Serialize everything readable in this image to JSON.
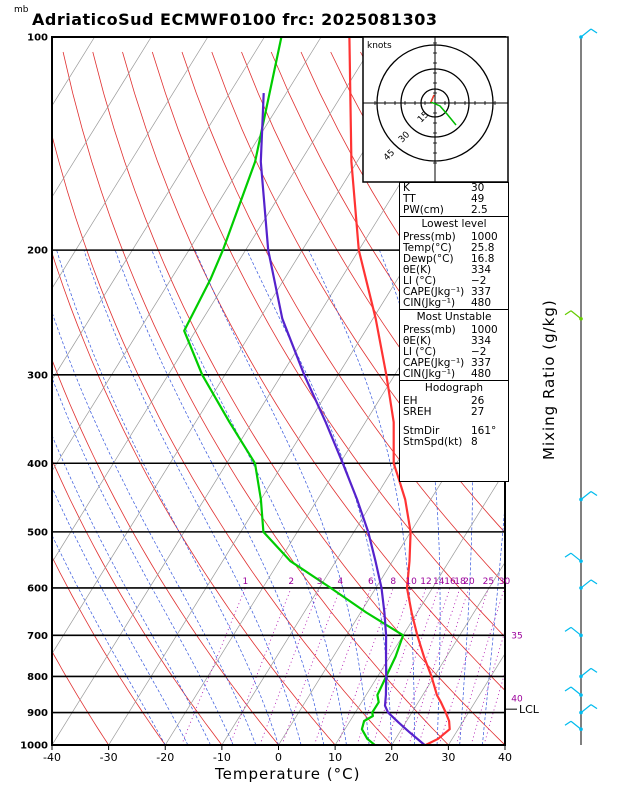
{
  "title": "AdriaticoSud ECMWF0100 frc: 2025081303",
  "pressure_unit": "mb",
  "chart_data": {
    "type": "line",
    "title": "AdriaticoSud ECMWF0100 frc: 2025081303",
    "xlabel": "Temperature (°C)",
    "ylabel": "",
    "right_label": "Mixing Ratio (g/kg)",
    "xlim": [
      -40,
      40
    ],
    "pressure_range": [
      1000,
      100
    ],
    "x_ticks": [
      "-40",
      "-30",
      "-20",
      "-10",
      "0",
      "10",
      "20",
      "30",
      "40"
    ],
    "pressure_ticks": [
      "100",
      "200",
      "300",
      "400",
      "500",
      "600",
      "700",
      "800",
      "900",
      "1000"
    ],
    "mixing_ratio_labels": [
      "1",
      "2",
      "3",
      "4",
      "6",
      "8",
      "10",
      "12",
      "14",
      "16",
      "18",
      "20",
      "25",
      "30",
      "35",
      "40"
    ],
    "lcl_label": "LCL",
    "lcl_pressure": 890,
    "series": [
      {
        "name": "temperature",
        "color": "#ff3333",
        "points": [
          [
            1000,
            26
          ],
          [
            980,
            27.5
          ],
          [
            950,
            28.5
          ],
          [
            925,
            27.5
          ],
          [
            900,
            26
          ],
          [
            870,
            24
          ],
          [
            850,
            22.5
          ],
          [
            800,
            19.5
          ],
          [
            750,
            16
          ],
          [
            700,
            12.5
          ],
          [
            650,
            9
          ],
          [
            600,
            5.5
          ],
          [
            550,
            3
          ],
          [
            500,
            0
          ],
          [
            450,
            -4.5
          ],
          [
            420,
            -8
          ],
          [
            400,
            -10.5
          ],
          [
            350,
            -15
          ],
          [
            300,
            -21.5
          ],
          [
            250,
            -29.5
          ],
          [
            200,
            -40
          ],
          [
            150,
            -51
          ],
          [
            100,
            -65
          ]
        ]
      },
      {
        "name": "dewpoint",
        "color": "#00cc00",
        "points": [
          [
            1000,
            17
          ],
          [
            980,
            15
          ],
          [
            950,
            13
          ],
          [
            925,
            12.5
          ],
          [
            910,
            13.5
          ],
          [
            900,
            13
          ],
          [
            870,
            13
          ],
          [
            850,
            12
          ],
          [
            800,
            11.5
          ],
          [
            750,
            11
          ],
          [
            700,
            10
          ],
          [
            650,
            1
          ],
          [
            600,
            -8
          ],
          [
            550,
            -18
          ],
          [
            500,
            -26
          ],
          [
            450,
            -30
          ],
          [
            400,
            -35
          ],
          [
            350,
            -44
          ],
          [
            300,
            -54
          ],
          [
            260,
            -62
          ],
          [
            220,
            -63
          ],
          [
            200,
            -64
          ],
          [
            150,
            -68
          ],
          [
            100,
            -77
          ]
        ]
      },
      {
        "name": "parcel",
        "color": "#5522cc",
        "points": [
          [
            1000,
            25.8
          ],
          [
            960,
            21.8
          ],
          [
            930,
            18.8
          ],
          [
            900,
            15.8
          ],
          [
            880,
            14.5
          ],
          [
            850,
            13.5
          ],
          [
            800,
            11.5
          ],
          [
            750,
            9.3
          ],
          [
            700,
            7
          ],
          [
            650,
            4.2
          ],
          [
            600,
            1
          ],
          [
            550,
            -3
          ],
          [
            500,
            -7.5
          ],
          [
            450,
            -13
          ],
          [
            400,
            -19.5
          ],
          [
            350,
            -27
          ],
          [
            300,
            -36
          ],
          [
            250,
            -46
          ],
          [
            200,
            -56
          ],
          [
            150,
            -67
          ],
          [
            120,
            -74
          ]
        ]
      }
    ],
    "wind_barbs_pressure": [
      100,
      250,
      450,
      550,
      600,
      700,
      800,
      850,
      900,
      950
    ],
    "hodograph": {
      "units_label": "knots",
      "ring_labels": [
        "15",
        "30",
        "45"
      ]
    }
  },
  "indices": {
    "top": [
      {
        "label": "K",
        "value": "30"
      },
      {
        "label": "TT",
        "value": "49"
      },
      {
        "label": "PW(cm)",
        "value": "2.5"
      }
    ],
    "lowest": {
      "heading": "Lowest level",
      "rows": [
        {
          "label": "Press(mb)",
          "value": "1000"
        },
        {
          "label": "Temp(°C)",
          "value": "25.8"
        },
        {
          "label": "Dewp(°C)",
          "value": "16.8"
        },
        {
          "label": "θE(K)",
          "value": "334"
        },
        {
          "label": "LI (°C)",
          "value": "−2"
        },
        {
          "label": "CAPE(Jkg⁻¹)",
          "value": "337"
        },
        {
          "label": "CIN(Jkg⁻¹)",
          "value": "480"
        }
      ]
    },
    "unstable": {
      "heading": "Most Unstable",
      "rows": [
        {
          "label": "Press(mb)",
          "value": "1000"
        },
        {
          "label": "θE(K)",
          "value": "334"
        },
        {
          "label": "LI (°C)",
          "value": "−2"
        },
        {
          "label": "CAPE(Jkg⁻¹)",
          "value": "337"
        },
        {
          "label": "CIN(Jkg⁻¹)",
          "value": "480"
        }
      ]
    },
    "hodo": {
      "heading": "Hodograph",
      "rows": [
        {
          "label": "EH",
          "value": "26"
        },
        {
          "label": "SREH",
          "value": "27"
        },
        {
          "label": "StmDir",
          "value": "161°"
        },
        {
          "label": "StmSpd(kt)",
          "value": "8"
        }
      ]
    }
  }
}
